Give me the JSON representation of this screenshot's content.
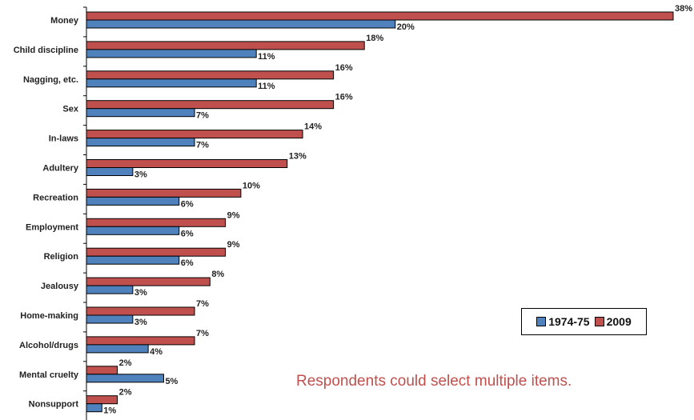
{
  "chart_data": {
    "type": "bar",
    "orientation": "horizontal",
    "categories": [
      "Money",
      "Child discipline",
      "Nagging, etc.",
      "Sex",
      "In-laws",
      "Adultery",
      "Recreation",
      "Employment",
      "Religion",
      "Jealousy",
      "Home-making",
      "Alcohol/drugs",
      "Mental cruelty",
      "Nonsupport"
    ],
    "series": [
      {
        "name": "1974-75",
        "color": "#4f81bd",
        "values": [
          20,
          11,
          11,
          7,
          7,
          3,
          6,
          6,
          6,
          3,
          3,
          4,
          5,
          1
        ]
      },
      {
        "name": "2009",
        "color": "#c0504d",
        "values": [
          38,
          18,
          16,
          16,
          14,
          13,
          10,
          9,
          9,
          8,
          7,
          7,
          2,
          2
        ]
      }
    ],
    "value_suffix": "%",
    "xlim": [
      0,
      38
    ],
    "legend_position": "bottom-right",
    "grid": false
  },
  "legend": {
    "items": [
      {
        "label": "1974-75",
        "color": "#4f81bd"
      },
      {
        "label": "2009",
        "color": "#c0504d"
      }
    ]
  },
  "note": "Respondents could select multiple items."
}
